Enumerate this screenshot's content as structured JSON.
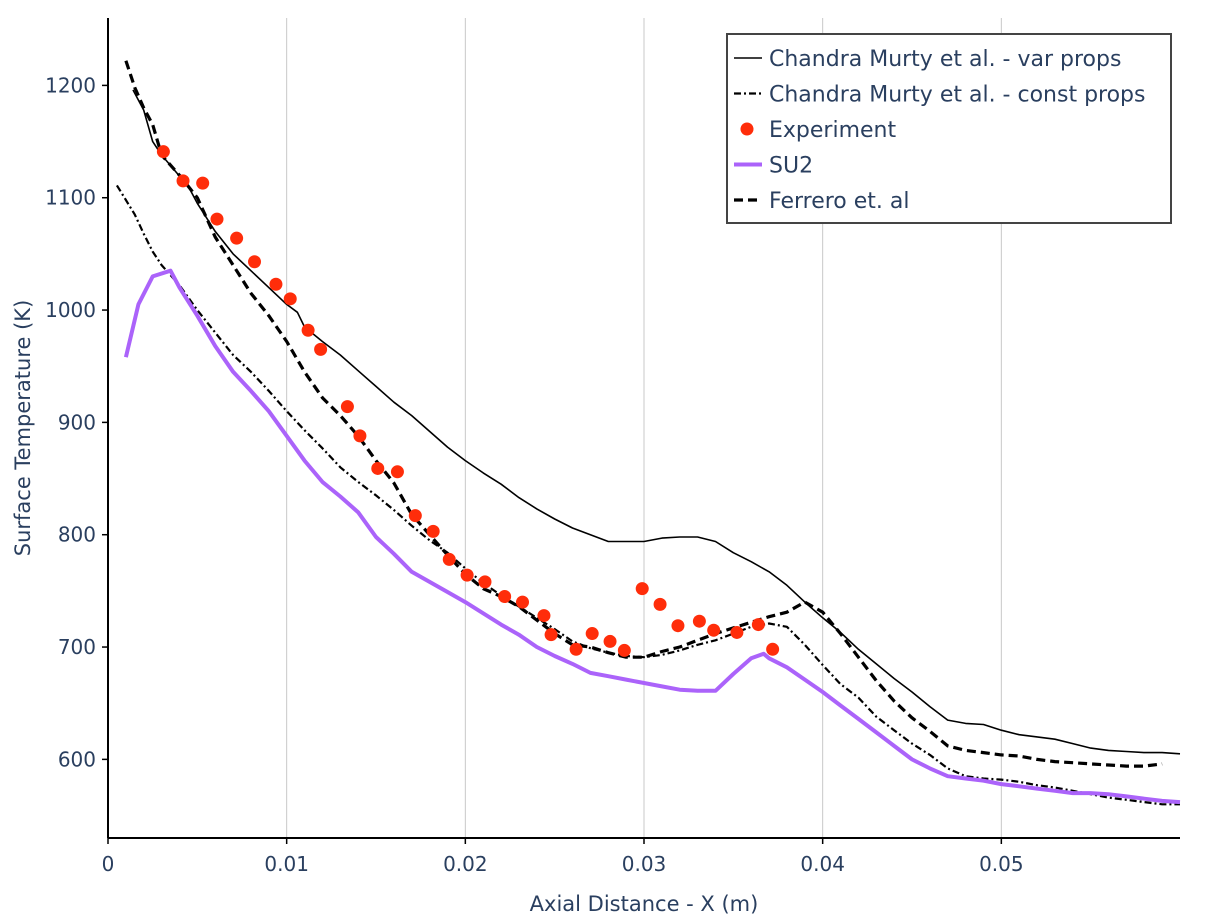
{
  "chart_data": {
    "type": "line",
    "xlabel": "Axial Distance - X (m)",
    "ylabel": "Surface Temperature (K)",
    "xlim": [
      0,
      0.06
    ],
    "ylim": [
      530,
      1260
    ],
    "xticks": [
      0,
      0.01,
      0.02,
      0.03,
      0.04,
      0.05
    ],
    "xtick_labels": [
      "0",
      "0.01",
      "0.02",
      "0.03",
      "0.04",
      "0.05"
    ],
    "yticks": [
      600,
      700,
      800,
      900,
      1000,
      1100,
      1200
    ],
    "ytick_labels": [
      "600",
      "700",
      "800",
      "900",
      "1000",
      "1100",
      "1200"
    ],
    "grid": "vertical",
    "legend_position": "top-right",
    "series": [
      {
        "name": "Chandra Murty et al. - var props",
        "style": "solid-thin",
        "color": "#000000",
        "x": [
          0.0014,
          0.002,
          0.0025,
          0.003,
          0.0038,
          0.0045,
          0.005,
          0.006,
          0.007,
          0.008,
          0.009,
          0.01,
          0.0106,
          0.011,
          0.012,
          0.013,
          0.014,
          0.015,
          0.016,
          0.017,
          0.018,
          0.019,
          0.02,
          0.021,
          0.022,
          0.023,
          0.024,
          0.025,
          0.026,
          0.027,
          0.028,
          0.029,
          0.03,
          0.031,
          0.032,
          0.033,
          0.034,
          0.035,
          0.036,
          0.037,
          0.038,
          0.039,
          0.04,
          0.041,
          0.042,
          0.043,
          0.044,
          0.045,
          0.046,
          0.047,
          0.048,
          0.049,
          0.05,
          0.051,
          0.052,
          0.053,
          0.054,
          0.055,
          0.056,
          0.057,
          0.058,
          0.059,
          0.06
        ],
        "y": [
          1196,
          1178,
          1150,
          1138,
          1123,
          1110,
          1095,
          1070,
          1050,
          1035,
          1020,
          1005,
          998,
          985,
          972,
          960,
          946,
          932,
          918,
          906,
          892,
          878,
          866,
          855,
          845,
          833,
          823,
          814,
          806,
          800,
          794,
          794,
          794,
          797,
          798,
          798,
          794,
          784,
          776,
          767,
          755,
          740,
          726,
          713,
          698,
          685,
          672,
          660,
          647,
          635,
          632,
          631,
          626,
          622,
          620,
          618,
          614,
          610,
          608,
          607,
          606,
          606,
          605
        ]
      },
      {
        "name": "Chandra Murty et al. - const props",
        "style": "dash-dot",
        "color": "#000000",
        "x": [
          0.0005,
          0.001,
          0.0015,
          0.002,
          0.0025,
          0.003,
          0.004,
          0.005,
          0.006,
          0.007,
          0.008,
          0.009,
          0.01,
          0.011,
          0.012,
          0.013,
          0.014,
          0.015,
          0.016,
          0.017,
          0.018,
          0.019,
          0.02,
          0.021,
          0.022,
          0.023,
          0.024,
          0.025,
          0.026,
          0.027,
          0.028,
          0.029,
          0.03,
          0.031,
          0.032,
          0.033,
          0.034,
          0.035,
          0.036,
          0.037,
          0.038,
          0.039,
          0.04,
          0.041,
          0.042,
          0.043,
          0.044,
          0.045,
          0.046,
          0.047,
          0.048,
          0.049,
          0.05,
          0.051,
          0.052,
          0.053,
          0.054,
          0.055,
          0.056,
          0.057,
          0.058,
          0.059,
          0.06
        ],
        "y": [
          1111,
          1098,
          1085,
          1068,
          1052,
          1040,
          1022,
          1000,
          980,
          960,
          945,
          928,
          910,
          893,
          877,
          860,
          847,
          835,
          822,
          808,
          795,
          784,
          770,
          757,
          746,
          736,
          726,
          716,
          705,
          699,
          695,
          692,
          691,
          693,
          697,
          702,
          706,
          712,
          718,
          721,
          718,
          702,
          684,
          667,
          655,
          638,
          626,
          614,
          604,
          592,
          585,
          583,
          582,
          580,
          577,
          575,
          572,
          569,
          566,
          564,
          562,
          560,
          560
        ]
      },
      {
        "name": "Experiment",
        "style": "markers",
        "color": "#ff2d0a",
        "x": [
          0.0031,
          0.0042,
          0.0053,
          0.0061,
          0.0072,
          0.0082,
          0.0094,
          0.0102,
          0.0112,
          0.0119,
          0.0134,
          0.0141,
          0.0151,
          0.0162,
          0.0172,
          0.0182,
          0.0191,
          0.0201,
          0.0211,
          0.0222,
          0.0232,
          0.0244,
          0.0248,
          0.0262,
          0.0271,
          0.0281,
          0.0289,
          0.0299,
          0.0309,
          0.0319,
          0.0331,
          0.0339,
          0.0352,
          0.0364,
          0.0372
        ],
        "y": [
          1141,
          1115,
          1113,
          1081,
          1064,
          1043,
          1023,
          1010,
          982,
          965,
          914,
          888,
          859,
          856,
          817,
          803,
          778,
          764,
          758,
          745,
          740,
          728,
          711,
          698,
          712,
          705,
          697,
          752,
          738,
          719,
          723,
          715,
          713,
          720,
          698
        ]
      },
      {
        "name": "SU2",
        "style": "solid-thick",
        "color": "#ab63fa",
        "x": [
          0.001,
          0.0017,
          0.0025,
          0.0035,
          0.004,
          0.005,
          0.006,
          0.007,
          0.008,
          0.009,
          0.01,
          0.011,
          0.012,
          0.013,
          0.014,
          0.015,
          0.016,
          0.017,
          0.018,
          0.019,
          0.02,
          0.021,
          0.022,
          0.023,
          0.024,
          0.025,
          0.026,
          0.027,
          0.028,
          0.029,
          0.03,
          0.031,
          0.032,
          0.033,
          0.034,
          0.035,
          0.036,
          0.0367,
          0.037,
          0.038,
          0.039,
          0.04,
          0.041,
          0.042,
          0.043,
          0.044,
          0.045,
          0.046,
          0.047,
          0.048,
          0.049,
          0.05,
          0.051,
          0.052,
          0.053,
          0.054,
          0.055,
          0.056,
          0.057,
          0.058,
          0.059,
          0.06
        ],
        "y": [
          958,
          1005,
          1030,
          1035,
          1020,
          995,
          968,
          945,
          928,
          910,
          888,
          866,
          847,
          834,
          820,
          798,
          783,
          767,
          758,
          749,
          740,
          730,
          720,
          711,
          700,
          692,
          685,
          677,
          674,
          671,
          668,
          665,
          662,
          661,
          661,
          676,
          690,
          694,
          690,
          682,
          671,
          660,
          648,
          636,
          624,
          612,
          600,
          592,
          585,
          583,
          581,
          578,
          576,
          574,
          572,
          570,
          570,
          569,
          567,
          565,
          563,
          562
        ]
      },
      {
        "name": "Ferrero et. al",
        "style": "dashed",
        "color": "#000000",
        "x": [
          0.001,
          0.0015,
          0.002,
          0.0025,
          0.003,
          0.004,
          0.005,
          0.006,
          0.007,
          0.008,
          0.009,
          0.01,
          0.011,
          0.012,
          0.013,
          0.014,
          0.015,
          0.016,
          0.017,
          0.018,
          0.019,
          0.02,
          0.021,
          0.022,
          0.023,
          0.024,
          0.025,
          0.026,
          0.027,
          0.028,
          0.029,
          0.03,
          0.031,
          0.032,
          0.033,
          0.034,
          0.035,
          0.036,
          0.037,
          0.038,
          0.039,
          0.04,
          0.041,
          0.042,
          0.043,
          0.044,
          0.045,
          0.046,
          0.047,
          0.048,
          0.049,
          0.05,
          0.051,
          0.052,
          0.053,
          0.054,
          0.055,
          0.056,
          0.057,
          0.058,
          0.059
        ],
        "y": [
          1222,
          1198,
          1180,
          1165,
          1138,
          1120,
          1100,
          1065,
          1040,
          1015,
          995,
          972,
          945,
          922,
          906,
          888,
          866,
          846,
          818,
          800,
          782,
          765,
          752,
          745,
          736,
          724,
          712,
          702,
          700,
          695,
          691,
          691,
          696,
          700,
          706,
          712,
          717,
          722,
          727,
          731,
          740,
          731,
          712,
          691,
          670,
          652,
          637,
          625,
          612,
          608,
          606,
          604,
          603,
          600,
          598,
          597,
          596,
          595,
          594,
          594,
          596
        ]
      }
    ]
  }
}
